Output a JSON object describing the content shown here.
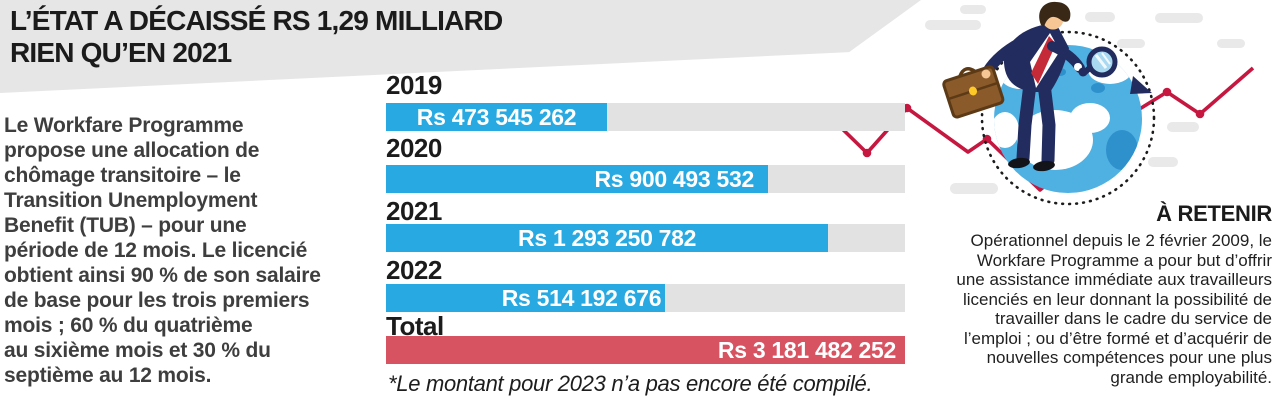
{
  "palette": {
    "banner_gray": "#e6e6e6",
    "track_gray": "#e2e2e2",
    "accent_blue": "#29a9e1",
    "accent_red": "#d75362",
    "line_red": "#c5173f",
    "text_dark": "#1b1b1b",
    "intro_gray": "#3e3e3e"
  },
  "header": {
    "title_lines": [
      "L’ÉTAT A DÉCAISSÉ RS 1,29 MILLIARD",
      "RIEN QU’EN 2021"
    ]
  },
  "intro": {
    "lines": [
      "Le Workfare Programme",
      "propose une allocation de",
      "chômage transitoire – le",
      "Transition Unemployment",
      "Benefit (TUB) – pour une",
      "période de 12 mois. Le licencié",
      "obtient ainsi 90 % de son salaire",
      "de base pour les trois premiers",
      "mois ; 60 % du quatrième",
      "au sixième mois et 30 % du",
      "septième au 12 mois."
    ]
  },
  "chart_data": {
    "type": "bar",
    "orientation": "horizontal",
    "title": "",
    "categories": [
      "2019",
      "2020",
      "2021",
      "2022",
      "Total"
    ],
    "values": [
      473545262,
      900493532,
      1293250782,
      514192676,
      3181482252
    ],
    "value_labels": [
      "Rs 473 545 262",
      "Rs 900 493 532",
      "Rs 1 293 250 782",
      "Rs 514 192 676",
      "Rs 3 181 482 252"
    ],
    "unit": "Rs",
    "bar_length_pct": [
      42.6,
      73.6,
      85.2,
      53.8,
      100
    ],
    "bar_colors": [
      "blue",
      "blue",
      "blue",
      "blue",
      "red"
    ],
    "grid": false,
    "legend": false,
    "note": "*Le montant pour 2023 n’a pas encore été compilé."
  },
  "aside": {
    "heading": "À RETENIR",
    "lines": [
      "Opérationnel depuis le 2 février 2009, le",
      "Workfare Programme a pour but d’offrir",
      "une assistance immédiate aux travailleurs",
      "licenciés en leur donnant la possibilité de",
      "travailler dans le cadre du service de",
      "l’emploi ; ou d’être formé et d’acquérir de",
      "nouvelles compétences pour une plus",
      "grande employabilité."
    ]
  },
  "illustration": {
    "name": "businessman-with-magnifying-glass-over-globe",
    "colors": {
      "suit_navy": "#222c5e",
      "tie_red": "#c52a38",
      "skin": "#f6c795",
      "hair_brown": "#3a2817",
      "case_brown": "#8a5a2b",
      "case_dark": "#5d3a16",
      "case_gold": "#fdc928",
      "globe_blue": "#4fb0e2",
      "globe_accent": "#2f91cc",
      "lens_blue": "#a9d9f1",
      "cloud_gray": "#e9e9e9",
      "dot_black": "#1c1c1c",
      "shoe_black": "#13131a"
    }
  }
}
